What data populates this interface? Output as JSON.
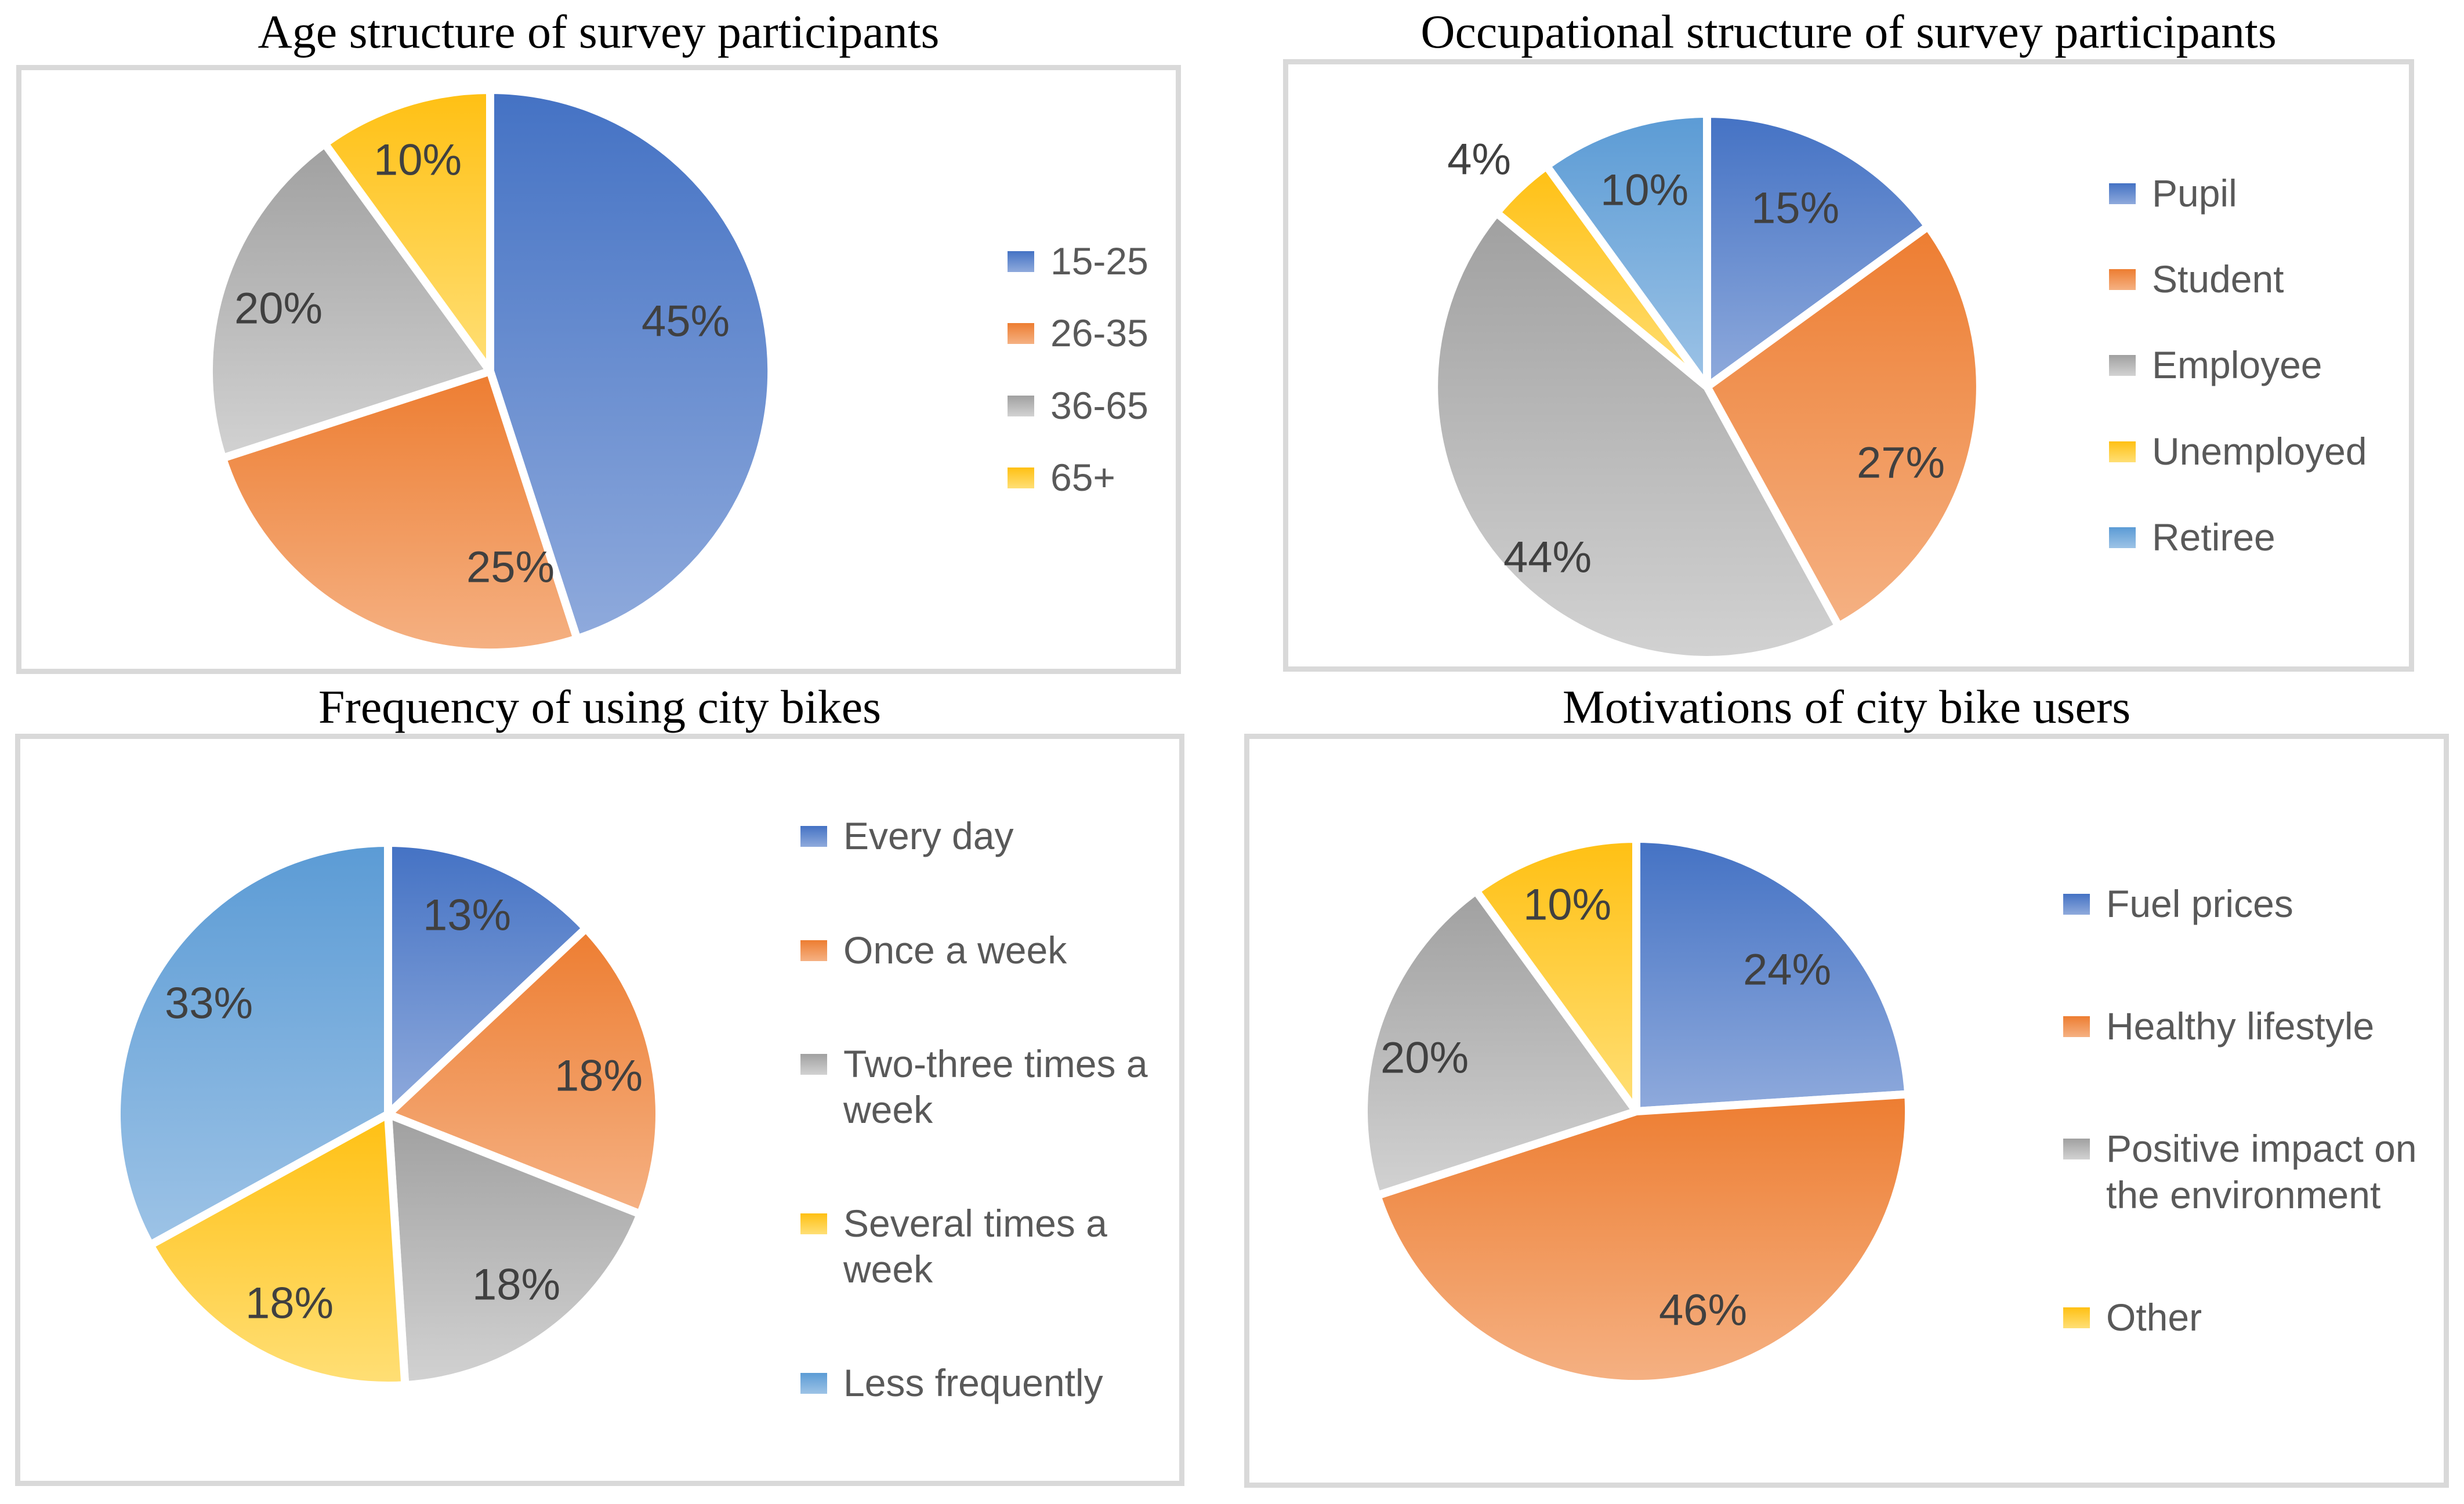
{
  "figure": {
    "background": "#ffffff",
    "panel_border_color": "#d9d9d9",
    "title_color": "#000000",
    "data_label_color": "#404040",
    "legend_text_color": "#595959"
  },
  "palette": {
    "blue": {
      "top": "#4472c4",
      "bottom": "#8faadc"
    },
    "orange": {
      "top": "#ed7d31",
      "bottom": "#f5b183"
    },
    "gray": {
      "top": "#a0a0a0",
      "bottom": "#d2d2d2"
    },
    "yellow": {
      "top": "#ffc013",
      "bottom": "#ffdf76"
    },
    "lightblue": {
      "top": "#5b9bd5",
      "bottom": "#9dc3e6"
    }
  },
  "chart_data": [
    {
      "id": "age",
      "type": "pie",
      "title": "Age structure of survey participants",
      "categories": [
        "15-25",
        "26-35",
        "36-65",
        "65+"
      ],
      "values": [
        45,
        25,
        20,
        10
      ],
      "data_labels": [
        "45%",
        "25%",
        "20%",
        "10%"
      ],
      "colors": [
        "blue",
        "orange",
        "gray",
        "yellow"
      ],
      "legend_position": "right",
      "start_angle_deg": 0,
      "direction": "clockwise"
    },
    {
      "id": "occupation",
      "type": "pie",
      "title": "Occupational structure of survey participants",
      "categories": [
        "Pupil",
        "Student",
        "Employee",
        "Unemployed",
        "Retiree"
      ],
      "values": [
        15,
        27,
        44,
        4,
        10
      ],
      "data_labels": [
        "15%",
        "27%",
        "44%",
        "4%",
        "10%"
      ],
      "colors": [
        "blue",
        "orange",
        "gray",
        "yellow",
        "lightblue"
      ],
      "legend_position": "right",
      "start_angle_deg": 0,
      "direction": "clockwise"
    },
    {
      "id": "frequency",
      "type": "pie",
      "title": "Frequency of using city bikes",
      "categories": [
        "Every day",
        "Once a week",
        "Two-three times a week",
        "Several times a week",
        "Less frequently"
      ],
      "values": [
        13,
        18,
        18,
        18,
        33
      ],
      "data_labels": [
        "13%",
        "18%",
        "18%",
        "18%",
        "33%"
      ],
      "colors": [
        "blue",
        "orange",
        "gray",
        "yellow",
        "lightblue"
      ],
      "legend_position": "right",
      "start_angle_deg": 0,
      "direction": "clockwise"
    },
    {
      "id": "motivation",
      "type": "pie",
      "title": "Motivations of city bike users",
      "categories": [
        "Fuel prices",
        "Healthy lifestyle",
        "Positive impact on the environment",
        "Other"
      ],
      "values": [
        24,
        46,
        20,
        10
      ],
      "data_labels": [
        "24%",
        "46%",
        "20%",
        "10%"
      ],
      "colors": [
        "blue",
        "orange",
        "gray",
        "yellow"
      ],
      "legend_position": "right",
      "start_angle_deg": 0,
      "direction": "clockwise"
    }
  ]
}
